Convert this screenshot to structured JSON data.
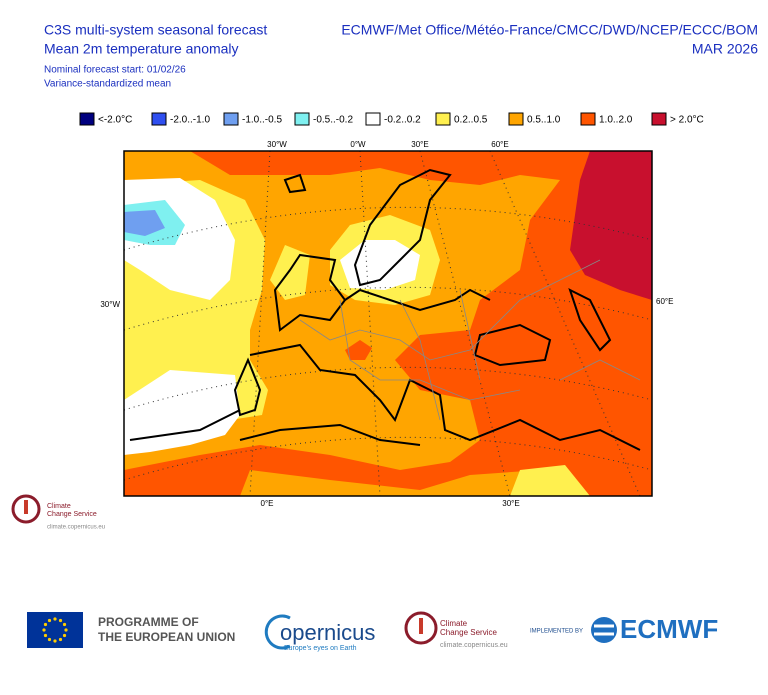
{
  "header": {
    "title_lines": [
      "C3S multi-system seasonal forecast",
      "Mean 2m temperature anomaly"
    ],
    "notes": [
      "Nominal forecast start: 01/02/26",
      "Variance-standardized mean"
    ],
    "centres": "ECMWF/Met Office/Météo-France/CMCC/DWD/NCEP/ECCC/BOM",
    "valid": "MAR 2026"
  },
  "legend": [
    {
      "label": "<-2.0°C",
      "color": "#00007f"
    },
    {
      "label": "-2.0..-1.0",
      "color": "#2f4ff0"
    },
    {
      "label": "-1.0..-0.5",
      "color": "#6f9ff0"
    },
    {
      "label": "-0.5..-0.2",
      "color": "#7ff0f0"
    },
    {
      "label": "-0.2..0.2",
      "color": "#ffffff"
    },
    {
      "label": "0.2..0.5",
      "color": "#fff04f"
    },
    {
      "label": "0.5..1.0",
      "color": "#ffa500"
    },
    {
      "label": "1.0..2.0",
      "color": "#ff5500"
    },
    {
      "label": "> 2.0°C",
      "color": "#c8102e"
    }
  ],
  "map": {
    "graticule_labels": [
      "30°W",
      "0°W",
      "30°E",
      "60°E",
      "30°W",
      "60°E",
      "0°E",
      "30°E"
    ]
  },
  "logos": {
    "c3s_name": [
      "Climate",
      "Change Service"
    ],
    "c3s_url": "climate.copernicus.eu",
    "eu": [
      "PROGRAMME OF",
      "THE EUROPEAN UNION"
    ],
    "copernicus": "opernicus",
    "copernicus_tag": "Europe's eyes on Earth",
    "implemented": "IMPLEMENTED BY",
    "ecmwf": "ECMWF"
  }
}
